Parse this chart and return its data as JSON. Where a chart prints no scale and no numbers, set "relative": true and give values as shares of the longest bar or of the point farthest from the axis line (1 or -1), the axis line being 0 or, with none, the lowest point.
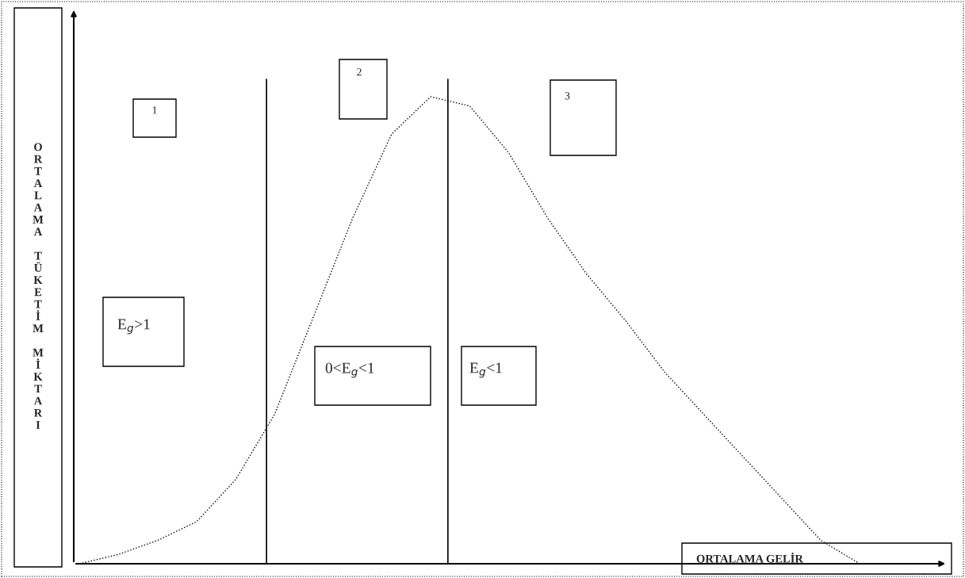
{
  "chart_data": {
    "type": "line",
    "relative": true,
    "xlabel": "ORTALAMA GELİR",
    "ylabel": "ORTALAMA TÜKETİM MİKTARI",
    "categories": [
      null,
      null,
      null,
      null,
      null,
      null,
      null,
      null,
      null,
      null,
      null,
      null,
      null,
      null,
      null,
      null,
      null,
      null,
      null,
      null,
      null
    ],
    "series": [
      {
        "color": "#000000",
        "values": [
          0,
          0.02,
          0.05,
          0.09,
          0.18,
          0.32,
          0.53,
          0.74,
          0.92,
          1,
          0.98,
          0.88,
          0.74,
          0.62,
          0.52,
          0.41,
          0.32,
          0.23,
          0.14,
          0.05,
          0
        ]
      }
    ],
    "line_style": "dotted",
    "marker": "none",
    "annotations": [
      "1",
      "2",
      "3",
      "E$_{g}$>1",
      "0<E$_{g}$<1",
      "E$_{g}$<1"
    ]
  }
}
